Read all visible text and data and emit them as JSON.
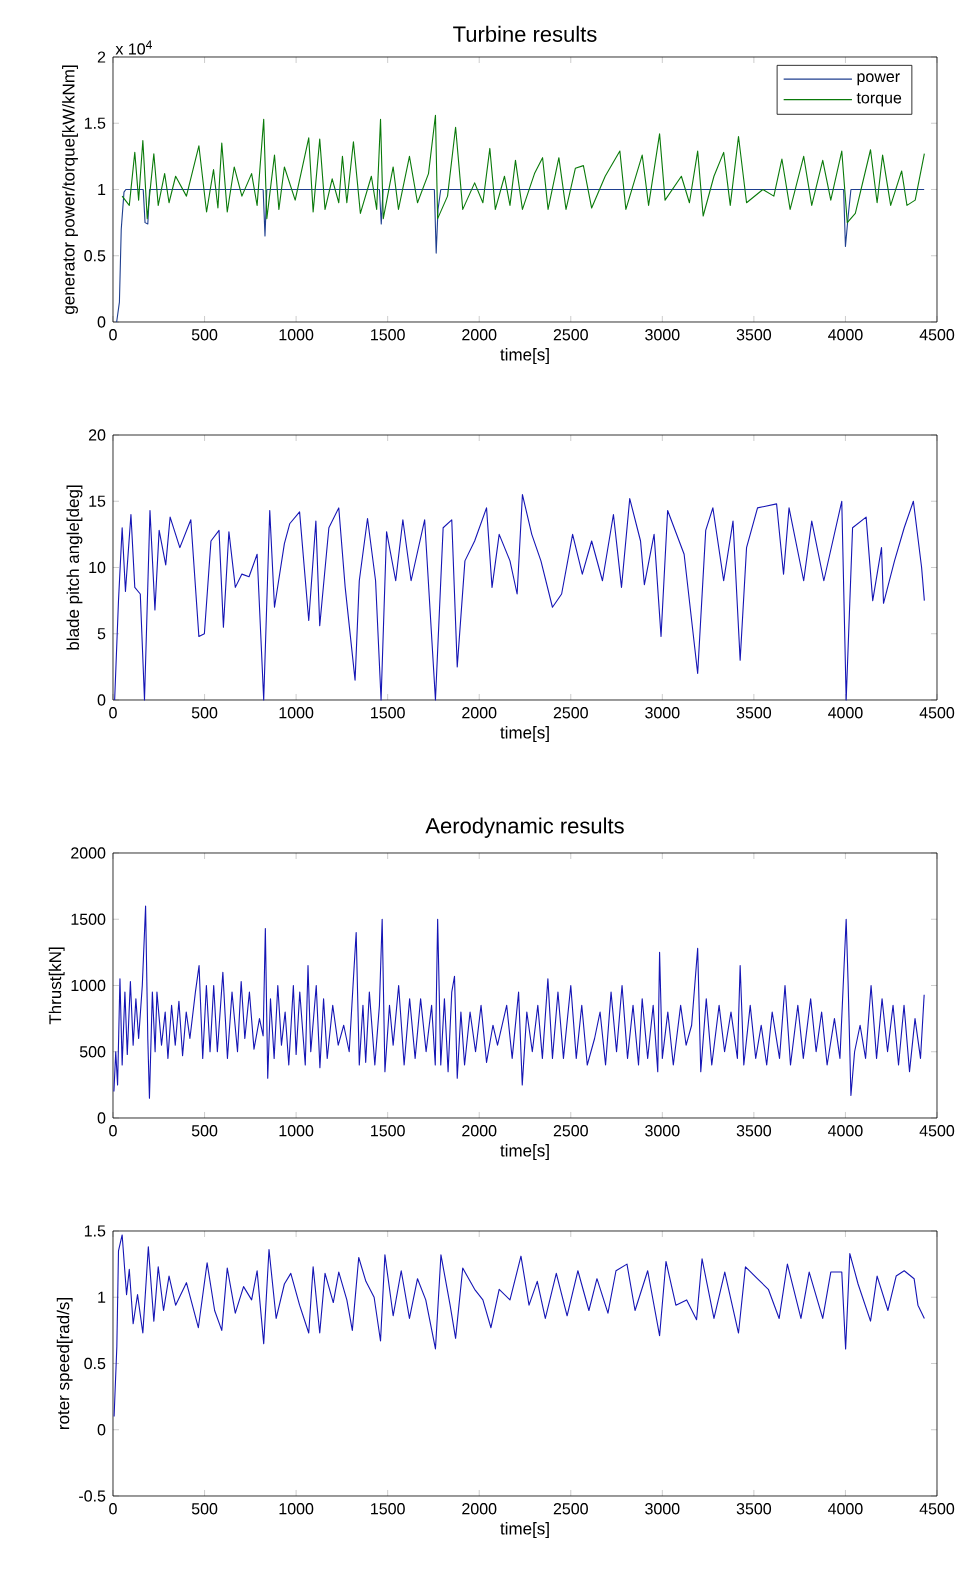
{
  "chart_data": [
    {
      "type": "line",
      "title": "Turbine results",
      "xlabel": "time[s]",
      "ylabel": "generator power/torque[kW/kNm]",
      "annotations": [
        "x 10$^{4}$"
      ],
      "legend": "top right",
      "xlim": [
        0,
        4500
      ],
      "xticks": [
        0,
        500,
        1000,
        1500,
        2000,
        2500,
        3000,
        3500,
        4000,
        4500
      ],
      "ylim": [
        0,
        2
      ],
      "yticks": [
        0,
        0.5,
        1,
        1.5,
        2
      ],
      "series": [
        {
          "name": "power",
          "color": "#1f3f8f",
          "x": [
            20,
            35,
            45,
            60,
            70,
            165,
            175,
            190,
            200,
            820,
            830,
            840,
            1455,
            1465,
            1475,
            1755,
            1765,
            1775,
            1790,
            3990,
            4000,
            4015,
            4030,
            4430
          ],
          "values": [
            0,
            0.15,
            0.7,
            0.98,
            1,
            1,
            0.75,
            0.74,
            1,
            1,
            0.65,
            1,
            1,
            0.74,
            1,
            1,
            0.52,
            0.85,
            1,
            1,
            0.57,
            0.8,
            1,
            1
          ]
        },
        {
          "name": "torque",
          "color": "#0a7a0a",
          "x": [
            50,
            89,
            119,
            140,
            163,
            187,
            223,
            247,
            282,
            306,
            342,
            401,
            469,
            511,
            549,
            573,
            594,
            624,
            662,
            704,
            757,
            787,
            823,
            840,
            882,
            906,
            936,
            995,
            1069,
            1093,
            1129,
            1158,
            1197,
            1233,
            1253,
            1277,
            1313,
            1351,
            1411,
            1440,
            1461,
            1476,
            1530,
            1559,
            1619,
            1663,
            1723,
            1761,
            1773,
            1827,
            1871,
            1910,
            1975,
            2020,
            2058,
            2088,
            2138,
            2168,
            2198,
            2236,
            2302,
            2346,
            2376,
            2435,
            2474,
            2525,
            2569,
            2614,
            2688,
            2768,
            2801,
            2890,
            2925,
            2985,
            3015,
            3104,
            3148,
            3193,
            3223,
            3282,
            3335,
            3371,
            3416,
            3460,
            3549,
            3609,
            3653,
            3698,
            3772,
            3816,
            3876,
            3920,
            3980,
            4010,
            4054,
            4137,
            4173,
            4203,
            4247,
            4307,
            4336,
            4381,
            4431
          ],
          "values": [
            0.95,
            0.88,
            1.28,
            0.92,
            1.37,
            0.78,
            1.27,
            0.88,
            1.12,
            0.9,
            1.1,
            0.95,
            1.33,
            0.83,
            1.15,
            0.86,
            1.35,
            0.83,
            1.17,
            0.95,
            1.12,
            0.88,
            1.53,
            0.78,
            1.26,
            0.85,
            1.17,
            0.92,
            1.39,
            0.83,
            1.38,
            0.85,
            1.08,
            0.9,
            1.25,
            0.9,
            1.36,
            0.82,
            1.1,
            0.85,
            1.53,
            0.78,
            1.17,
            0.85,
            1.25,
            0.9,
            1.12,
            1.56,
            0.78,
            0.95,
            1.47,
            0.85,
            1.05,
            0.9,
            1.31,
            0.85,
            1.1,
            0.88,
            1.22,
            0.85,
            1.12,
            1.24,
            0.85,
            1.24,
            0.85,
            1.16,
            1.18,
            0.86,
            1.1,
            1.29,
            0.85,
            1.26,
            0.88,
            1.42,
            0.92,
            1.1,
            0.9,
            1.29,
            0.8,
            1.1,
            1.28,
            0.88,
            1.4,
            0.9,
            1,
            0.95,
            1.23,
            0.85,
            1.25,
            0.88,
            1.22,
            0.92,
            1.29,
            0.75,
            0.82,
            1.3,
            0.9,
            1.26,
            0.88,
            1.14,
            0.88,
            0.92,
            1.27
          ]
        }
      ]
    },
    {
      "type": "line",
      "xlabel": "time[s]",
      "ylabel": "blade pitch angle[deg]",
      "xlim": [
        0,
        4500
      ],
      "xticks": [
        0,
        500,
        1000,
        1500,
        2000,
        2500,
        3000,
        3500,
        4000,
        4500
      ],
      "ylim": [
        0,
        20
      ],
      "yticks": [
        0,
        5,
        10,
        15,
        20
      ],
      "series": [
        {
          "color": "#1515b5",
          "x": [
            9,
            30,
            50,
            68,
            98,
            119,
            149,
            172,
            202,
            229,
            252,
            288,
            312,
            365,
            425,
            469,
            499,
            535,
            579,
            603,
            633,
            668,
            704,
            743,
            787,
            823,
            856,
            882,
            936,
            965,
            1019,
            1069,
            1108,
            1129,
            1179,
            1233,
            1268,
            1322,
            1345,
            1390,
            1434,
            1464,
            1494,
            1544,
            1583,
            1628,
            1702,
            1761,
            1803,
            1850,
            1880,
            1922,
            1975,
            2040,
            2070,
            2109,
            2168,
            2207,
            2236,
            2287,
            2337,
            2400,
            2450,
            2510,
            2563,
            2614,
            2673,
            2733,
            2777,
            2822,
            2881,
            2902,
            2955,
            2993,
            3029,
            3119,
            3193,
            3237,
            3276,
            3335,
            3386,
            3425,
            3460,
            3520,
            3624,
            3662,
            3692,
            3772,
            3816,
            3882,
            3980,
            4004,
            4039,
            4113,
            4149,
            4197,
            4208,
            4268,
            4321,
            4371,
            4416,
            4431
          ],
          "values": [
            0,
            7.5,
            13,
            8.2,
            14,
            8.5,
            8,
            0,
            14.3,
            6.8,
            12.8,
            10.2,
            13.8,
            11.5,
            13.6,
            4.8,
            5,
            12,
            12.8,
            5.5,
            12.7,
            8.5,
            9.5,
            9.3,
            11,
            0,
            14.3,
            7,
            11.8,
            13.3,
            14.2,
            6,
            13.5,
            5.6,
            13,
            14.5,
            8.5,
            1.5,
            9,
            13.7,
            9,
            0,
            12.7,
            9,
            13.6,
            9,
            13.6,
            0,
            13,
            13.6,
            2.5,
            10.5,
            12,
            14.5,
            8.5,
            12.5,
            10.5,
            8,
            15.5,
            12.5,
            10.5,
            7,
            8,
            12.5,
            9.5,
            12,
            9,
            14,
            8.5,
            15.2,
            12,
            8.7,
            12.5,
            4.8,
            14.3,
            11,
            2,
            12.8,
            14.5,
            9,
            13.5,
            3,
            11.5,
            14.5,
            14.8,
            9.5,
            14.5,
            9,
            13.5,
            9,
            15,
            0,
            13,
            13.8,
            7.5,
            11.5,
            7.3,
            10.5,
            13,
            15,
            10,
            7.5
          ]
        }
      ]
    },
    {
      "type": "line",
      "title": "Aerodynamic results",
      "xlabel": "time[s]",
      "ylabel": "Thrust[kN]",
      "xlim": [
        0,
        4500
      ],
      "xticks": [
        0,
        500,
        1000,
        1500,
        2000,
        2500,
        3000,
        3500,
        4000,
        4500
      ],
      "ylim": [
        0,
        2000
      ],
      "yticks": [
        0,
        500,
        1000,
        1500,
        2000
      ],
      "series": [
        {
          "color": "#1515b5",
          "x": [
            5,
            15,
            25,
            38,
            50,
            65,
            78,
            95,
            110,
            125,
            140,
            160,
            178,
            190,
            199,
            215,
            230,
            240,
            265,
            285,
            300,
            320,
            340,
            360,
            380,
            400,
            420,
            450,
            470,
            490,
            510,
            530,
            550,
            570,
            600,
            625,
            650,
            680,
            700,
            720,
            745,
            770,
            800,
            820,
            832,
            845,
            860,
            880,
            900,
            920,
            940,
            960,
            985,
            1000,
            1020,
            1050,
            1065,
            1080,
            1110,
            1130,
            1150,
            1170,
            1200,
            1230,
            1260,
            1290,
            1313,
            1328,
            1345,
            1365,
            1380,
            1400,
            1430,
            1455,
            1470,
            1485,
            1510,
            1530,
            1560,
            1590,
            1620,
            1650,
            1680,
            1710,
            1740,
            1760,
            1773,
            1790,
            1810,
            1830,
            1850,
            1865,
            1880,
            1900,
            1920,
            1950,
            1980,
            2010,
            2040,
            2075,
            2100,
            2150,
            2180,
            2215,
            2235,
            2260,
            2290,
            2320,
            2345,
            2375,
            2400,
            2430,
            2460,
            2500,
            2530,
            2560,
            2590,
            2630,
            2660,
            2690,
            2720,
            2750,
            2780,
            2810,
            2840,
            2870,
            2890,
            2920,
            2950,
            2975,
            2985,
            3000,
            3030,
            3060,
            3100,
            3130,
            3160,
            3193,
            3210,
            3240,
            3270,
            3310,
            3340,
            3375,
            3410,
            3425,
            3445,
            3480,
            3510,
            3540,
            3570,
            3600,
            3640,
            3670,
            3700,
            3740,
            3770,
            3810,
            3840,
            3870,
            3900,
            3940,
            3970,
            4004,
            4015,
            4030,
            4050,
            4080,
            4110,
            4140,
            4170,
            4200,
            4230,
            4260,
            4290,
            4320,
            4350,
            4380,
            4410,
            4430
          ],
          "values": [
            200,
            500,
            250,
            1050,
            400,
            950,
            480,
            1030,
            550,
            900,
            600,
            1000,
            1600,
            600,
            150,
            950,
            500,
            950,
            550,
            800,
            450,
            850,
            550,
            880,
            470,
            800,
            600,
            950,
            1150,
            450,
            1000,
            500,
            1000,
            500,
            1100,
            450,
            950,
            500,
            1030,
            600,
            950,
            520,
            750,
            620,
            1430,
            300,
            900,
            450,
            1000,
            550,
            800,
            400,
            1000,
            480,
            950,
            400,
            1150,
            500,
            1000,
            380,
            900,
            450,
            850,
            550,
            700,
            500,
            1050,
            1400,
            400,
            850,
            420,
            950,
            400,
            850,
            1500,
            350,
            850,
            550,
            1000,
            400,
            900,
            450,
            900,
            500,
            850,
            400,
            1500,
            400,
            900,
            350,
            950,
            1070,
            300,
            800,
            400,
            800,
            500,
            850,
            420,
            700,
            550,
            850,
            450,
            950,
            250,
            800,
            500,
            850,
            450,
            1050,
            450,
            950,
            450,
            1000,
            450,
            850,
            400,
            600,
            800,
            400,
            950,
            500,
            1000,
            450,
            850,
            400,
            900,
            450,
            850,
            350,
            1250,
            450,
            800,
            400,
            850,
            550,
            700,
            1280,
            350,
            900,
            400,
            850,
            500,
            800,
            450,
            1150,
            400,
            850,
            450,
            700,
            400,
            800,
            450,
            1000,
            400,
            850,
            450,
            900,
            500,
            800,
            400,
            750,
            450,
            1500,
            1000,
            170,
            500,
            700,
            450,
            1000,
            450,
            900,
            500,
            850,
            400,
            850,
            350,
            750,
            450,
            930
          ]
        }
      ]
    },
    {
      "type": "line",
      "xlabel": "time[s]",
      "ylabel": "roter speed[rad/s]",
      "xlim": [
        0,
        4500
      ],
      "xticks": [
        0,
        500,
        1000,
        1500,
        2000,
        2500,
        3000,
        3500,
        4000,
        4500
      ],
      "ylim": [
        -0.5,
        1.5
      ],
      "yticks": [
        -0.5,
        0,
        0.5,
        1,
        1.5
      ],
      "series": [
        {
          "color": "#1515b5",
          "x": [
            6,
            21,
            30,
            50,
            74,
            89,
            110,
            134,
            163,
            193,
            223,
            247,
            276,
            306,
            342,
            401,
            466,
            514,
            555,
            594,
            624,
            668,
            713,
            757,
            787,
            823,
            852,
            891,
            936,
            971,
            1019,
            1069,
            1093,
            1129,
            1158,
            1203,
            1233,
            1277,
            1307,
            1342,
            1381,
            1426,
            1461,
            1485,
            1530,
            1574,
            1619,
            1663,
            1708,
            1761,
            1791,
            1841,
            1871,
            1910,
            1975,
            2020,
            2064,
            2109,
            2168,
            2228,
            2272,
            2317,
            2361,
            2421,
            2480,
            2539,
            2599,
            2643,
            2703,
            2747,
            2807,
            2851,
            2920,
            2985,
            3020,
            3074,
            3133,
            3187,
            3217,
            3282,
            3341,
            3416,
            3454,
            3519,
            3579,
            3638,
            3683,
            3757,
            3802,
            3876,
            3920,
            3980,
            4001,
            4024,
            4069,
            4137,
            4173,
            4232,
            4277,
            4321,
            4375,
            4396,
            4431
          ],
          "values": [
            0.1,
            0.63,
            1.35,
            1.47,
            1.02,
            1.21,
            0.8,
            1.02,
            0.73,
            1.38,
            0.82,
            1.23,
            0.9,
            1.16,
            0.94,
            1.11,
            0.77,
            1.26,
            0.9,
            0.75,
            1.22,
            0.88,
            1.08,
            0.98,
            1.2,
            0.65,
            1.36,
            0.84,
            1.1,
            1.18,
            0.94,
            0.73,
            1.23,
            0.73,
            1.18,
            0.96,
            1.19,
            0.98,
            0.75,
            1.3,
            1.12,
            1.0,
            0.67,
            1.32,
            0.86,
            1.2,
            0.84,
            1.14,
            0.98,
            0.61,
            1.32,
            0.94,
            0.69,
            1.22,
            1.06,
            0.98,
            0.77,
            1.06,
            0.98,
            1.31,
            0.94,
            1.12,
            0.84,
            1.18,
            0.86,
            1.2,
            0.9,
            1.14,
            0.88,
            1.2,
            1.25,
            0.9,
            1.2,
            0.71,
            1.27,
            0.94,
            0.98,
            0.83,
            1.29,
            0.84,
            1.19,
            0.73,
            1.23,
            1.14,
            1.06,
            0.84,
            1.25,
            0.84,
            1.19,
            0.84,
            1.19,
            1.19,
            0.61,
            1.33,
            1.1,
            0.82,
            1.16,
            0.9,
            1.16,
            1.2,
            1.14,
            0.94,
            0.84
          ]
        }
      ]
    }
  ]
}
